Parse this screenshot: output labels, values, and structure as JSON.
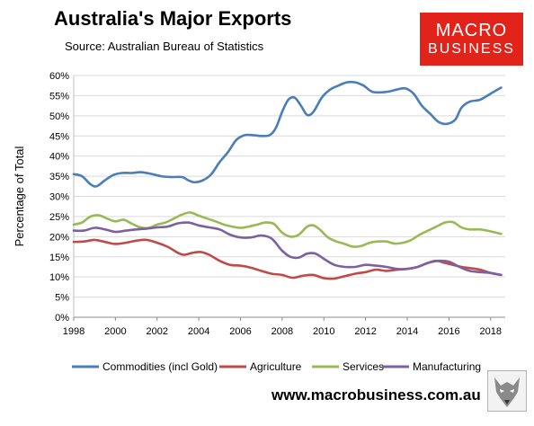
{
  "header": {
    "title": "Australia's Major Exports",
    "source": "Source:  Australian Bureau of Statistics"
  },
  "logo": {
    "line1": "MACRO",
    "line2": "BUSINESS"
  },
  "footer": {
    "url": "www.macrobusiness.com.au"
  },
  "chart_data": {
    "type": "line",
    "title": "Australia's Major Exports",
    "ylabel": "Percentage of Total",
    "xlabel": "",
    "xlim": [
      1998,
      2018.7
    ],
    "ylim": [
      0,
      60
    ],
    "x_ticks": [
      1998,
      2000,
      2002,
      2004,
      2006,
      2008,
      2010,
      2012,
      2014,
      2016,
      2018
    ],
    "x_tick_labels": [
      "1998",
      "2000",
      "2002",
      "2004",
      "2006",
      "2008",
      "2010",
      "2012",
      "2014",
      "2016",
      "2018"
    ],
    "y_ticks": [
      0,
      5,
      10,
      15,
      20,
      25,
      30,
      35,
      40,
      45,
      50,
      55,
      60
    ],
    "y_tick_labels": [
      "0%",
      "5%",
      "10%",
      "15%",
      "20%",
      "25%",
      "30%",
      "35%",
      "40%",
      "45%",
      "50%",
      "55%",
      "60%"
    ],
    "grid": "horizontal",
    "legend": "bottom",
    "series": [
      {
        "name": "Commodities (incl Gold)",
        "color": "#4a7ebb",
        "points": [
          [
            1998,
            35.5
          ],
          [
            1998.4,
            35
          ],
          [
            1998.8,
            33
          ],
          [
            1999.1,
            32.5
          ],
          [
            1999.5,
            34
          ],
          [
            1999.9,
            35.3
          ],
          [
            2000.3,
            35.8
          ],
          [
            2000.8,
            35.8
          ],
          [
            2001.2,
            36
          ],
          [
            2001.7,
            35.6
          ],
          [
            2002.2,
            35
          ],
          [
            2002.7,
            34.8
          ],
          [
            2003.2,
            34.8
          ],
          [
            2003.5,
            34
          ],
          [
            2003.8,
            33.5
          ],
          [
            2004.2,
            34
          ],
          [
            2004.6,
            35.5
          ],
          [
            2005,
            38.5
          ],
          [
            2005.4,
            41
          ],
          [
            2005.8,
            44
          ],
          [
            2006.2,
            45.2
          ],
          [
            2006.6,
            45.2
          ],
          [
            2007,
            45
          ],
          [
            2007.4,
            45.2
          ],
          [
            2007.7,
            47
          ],
          [
            2008,
            51
          ],
          [
            2008.3,
            54
          ],
          [
            2008.6,
            54.5
          ],
          [
            2008.9,
            52.5
          ],
          [
            2009.2,
            50.2
          ],
          [
            2009.5,
            51
          ],
          [
            2009.9,
            54.5
          ],
          [
            2010.3,
            56.5
          ],
          [
            2010.7,
            57.5
          ],
          [
            2011.1,
            58.3
          ],
          [
            2011.5,
            58.3
          ],
          [
            2011.9,
            57.5
          ],
          [
            2012.3,
            56
          ],
          [
            2012.7,
            55.8
          ],
          [
            2013.1,
            56
          ],
          [
            2013.5,
            56.5
          ],
          [
            2013.9,
            56.8
          ],
          [
            2014.3,
            55.5
          ],
          [
            2014.7,
            52.5
          ],
          [
            2015.1,
            50.5
          ],
          [
            2015.5,
            48.5
          ],
          [
            2015.9,
            48
          ],
          [
            2016.3,
            49
          ],
          [
            2016.6,
            52
          ],
          [
            2017,
            53.5
          ],
          [
            2017.5,
            54
          ],
          [
            2018,
            55.5
          ],
          [
            2018.5,
            57
          ]
        ]
      },
      {
        "name": "Agriculture",
        "color": "#be4b48",
        "points": [
          [
            1998,
            18.7
          ],
          [
            1998.5,
            18.8
          ],
          [
            1999,
            19.2
          ],
          [
            1999.5,
            18.7
          ],
          [
            2000,
            18.2
          ],
          [
            2000.5,
            18.5
          ],
          [
            2001,
            19
          ],
          [
            2001.5,
            19.2
          ],
          [
            2002,
            18.5
          ],
          [
            2002.5,
            17.5
          ],
          [
            2003,
            16
          ],
          [
            2003.3,
            15.5
          ],
          [
            2003.7,
            16
          ],
          [
            2004.1,
            16.2
          ],
          [
            2004.5,
            15.5
          ],
          [
            2005,
            14
          ],
          [
            2005.5,
            13
          ],
          [
            2006,
            12.8
          ],
          [
            2006.5,
            12.3
          ],
          [
            2007,
            11.5
          ],
          [
            2007.5,
            10.8
          ],
          [
            2008,
            10.5
          ],
          [
            2008.5,
            9.8
          ],
          [
            2009,
            10.3
          ],
          [
            2009.5,
            10.5
          ],
          [
            2010,
            9.7
          ],
          [
            2010.5,
            9.6
          ],
          [
            2011,
            10.2
          ],
          [
            2011.5,
            10.8
          ],
          [
            2012,
            11.2
          ],
          [
            2012.5,
            11.8
          ],
          [
            2013,
            11.5
          ],
          [
            2013.5,
            11.8
          ],
          [
            2014,
            12
          ],
          [
            2014.5,
            12.5
          ],
          [
            2015,
            13.5
          ],
          [
            2015.4,
            14
          ],
          [
            2015.8,
            13.5
          ],
          [
            2016.2,
            13
          ],
          [
            2016.6,
            12.5
          ],
          [
            2017,
            12.2
          ],
          [
            2017.5,
            11.8
          ],
          [
            2018,
            11
          ],
          [
            2018.5,
            10.5
          ]
        ]
      },
      {
        "name": "Services",
        "color": "#98b954",
        "points": [
          [
            1998,
            23
          ],
          [
            1998.4,
            23.5
          ],
          [
            1998.8,
            25
          ],
          [
            1999.2,
            25.3
          ],
          [
            1999.6,
            24.5
          ],
          [
            2000,
            23.8
          ],
          [
            2000.4,
            24.2
          ],
          [
            2000.8,
            23.2
          ],
          [
            2001.2,
            22.3
          ],
          [
            2001.6,
            22.2
          ],
          [
            2002,
            23
          ],
          [
            2002.4,
            23.5
          ],
          [
            2002.8,
            24.5
          ],
          [
            2003.2,
            25.5
          ],
          [
            2003.6,
            26
          ],
          [
            2004,
            25.2
          ],
          [
            2004.4,
            24.5
          ],
          [
            2004.8,
            23.8
          ],
          [
            2005.2,
            23
          ],
          [
            2005.6,
            22.5
          ],
          [
            2006,
            22.2
          ],
          [
            2006.4,
            22.5
          ],
          [
            2006.8,
            23
          ],
          [
            2007.2,
            23.5
          ],
          [
            2007.6,
            23.2
          ],
          [
            2008,
            21
          ],
          [
            2008.4,
            20
          ],
          [
            2008.8,
            20.5
          ],
          [
            2009.2,
            22.5
          ],
          [
            2009.5,
            22.8
          ],
          [
            2009.8,
            21.8
          ],
          [
            2010.2,
            19.8
          ],
          [
            2010.6,
            18.8
          ],
          [
            2011,
            18.2
          ],
          [
            2011.4,
            17.5
          ],
          [
            2011.8,
            17.7
          ],
          [
            2012.2,
            18.5
          ],
          [
            2012.6,
            18.8
          ],
          [
            2013,
            18.8
          ],
          [
            2013.4,
            18.3
          ],
          [
            2013.8,
            18.5
          ],
          [
            2014.2,
            19.2
          ],
          [
            2014.6,
            20.5
          ],
          [
            2015,
            21.5
          ],
          [
            2015.4,
            22.5
          ],
          [
            2015.8,
            23.5
          ],
          [
            2016.2,
            23.6
          ],
          [
            2016.6,
            22.3
          ],
          [
            2017,
            21.8
          ],
          [
            2017.5,
            21.8
          ],
          [
            2018,
            21.3
          ],
          [
            2018.5,
            20.7
          ]
        ]
      },
      {
        "name": "Manufacturing",
        "color": "#7d60a0",
        "points": [
          [
            1998,
            21.5
          ],
          [
            1998.5,
            21.5
          ],
          [
            1999,
            22.2
          ],
          [
            1999.5,
            21.8
          ],
          [
            2000,
            21.2
          ],
          [
            2000.5,
            21.5
          ],
          [
            2001,
            21.8
          ],
          [
            2001.5,
            22
          ],
          [
            2002,
            22.3
          ],
          [
            2002.5,
            22.5
          ],
          [
            2003,
            23.3
          ],
          [
            2003.5,
            23.5
          ],
          [
            2004,
            22.8
          ],
          [
            2004.5,
            22.3
          ],
          [
            2005,
            21.8
          ],
          [
            2005.5,
            20.5
          ],
          [
            2006,
            19.8
          ],
          [
            2006.5,
            19.8
          ],
          [
            2007,
            20.3
          ],
          [
            2007.5,
            19.5
          ],
          [
            2008,
            16.5
          ],
          [
            2008.4,
            15
          ],
          [
            2008.8,
            14.8
          ],
          [
            2009.2,
            15.8
          ],
          [
            2009.6,
            15.8
          ],
          [
            2010,
            14.5
          ],
          [
            2010.5,
            13
          ],
          [
            2011,
            12.5
          ],
          [
            2011.5,
            12.5
          ],
          [
            2012,
            13
          ],
          [
            2012.5,
            12.8
          ],
          [
            2013,
            12.5
          ],
          [
            2013.5,
            12
          ],
          [
            2014,
            12
          ],
          [
            2014.5,
            12.5
          ],
          [
            2015,
            13.5
          ],
          [
            2015.5,
            14
          ],
          [
            2016,
            13.8
          ],
          [
            2016.5,
            12.5
          ],
          [
            2017,
            11.5
          ],
          [
            2017.5,
            11.2
          ],
          [
            2018,
            11
          ],
          [
            2018.5,
            10.5
          ]
        ]
      }
    ]
  }
}
